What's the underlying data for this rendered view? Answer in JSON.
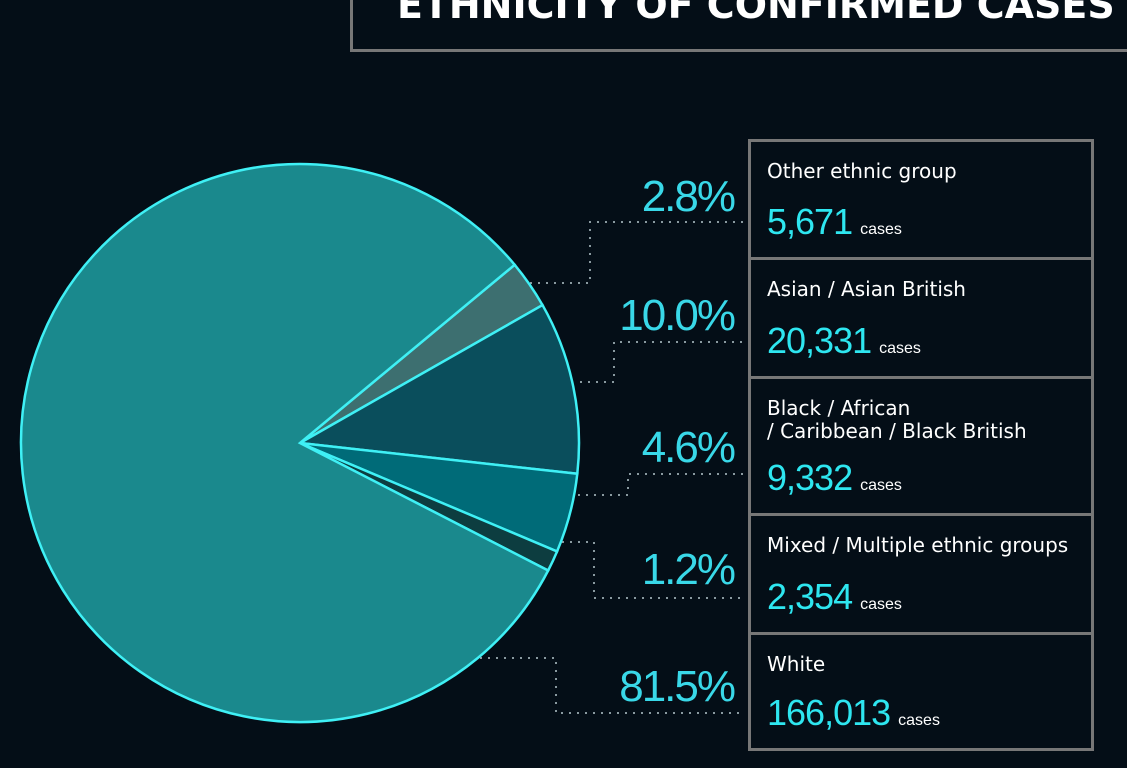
{
  "chart_data": {
    "type": "pie",
    "title": "ETHNICITY OF CONFIRMED CASES",
    "categories": [
      "Other ethnic group",
      "Asian / Asian British",
      "Black / African\n/ Caribbean / Black British",
      "Mixed / Multiple ethnic groups",
      "White"
    ],
    "values": [
      2.8,
      10.0,
      4.6,
      1.2,
      81.5
    ],
    "value_labels": [
      "2.8%",
      "10.0%",
      "4.6%",
      "1.2%",
      "81.5%"
    ],
    "cases": [
      "5,671",
      "20,331",
      "9,332",
      "2,354",
      "166,013"
    ],
    "unit": "cases",
    "colors": [
      "#3d6f70",
      "#0a4e5c",
      "#006b78",
      "#0d3d40",
      "#1a898d"
    ]
  }
}
